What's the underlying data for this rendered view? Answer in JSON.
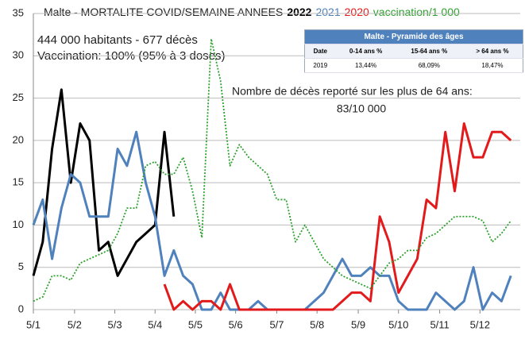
{
  "chart_data": {
    "type": "line",
    "title": "Malte - MORTALITE COVID/SEMAINE ANNEES",
    "annotations": [
      "444 000 habitants - 677 décès",
      "Vaccination: 100% (95% à 3 doses)",
      "Nombre de décès reporté sur les plus de 64 ans:",
      "83/10 000"
    ],
    "x": [
      1,
      2,
      3,
      4,
      5,
      6,
      7,
      8,
      9,
      10,
      11,
      12,
      13,
      14,
      15,
      16,
      17,
      18,
      19,
      20,
      21,
      22,
      23,
      24,
      25,
      26,
      27,
      28,
      29,
      30,
      31,
      32,
      33,
      34,
      35,
      36,
      37,
      38,
      39,
      40,
      41,
      42,
      43,
      44,
      45,
      46,
      47,
      48,
      49,
      50,
      51,
      52
    ],
    "xlim": [
      1,
      53
    ],
    "xticks": [
      {
        "value": 1,
        "label": "5/1"
      },
      {
        "value": 5.4,
        "label": "5/2"
      },
      {
        "value": 9.7,
        "label": "5/3"
      },
      {
        "value": 14,
        "label": "5/4"
      },
      {
        "value": 18.3,
        "label": "5/5"
      },
      {
        "value": 22.6,
        "label": "5/6"
      },
      {
        "value": 27,
        "label": "5/7"
      },
      {
        "value": 31.3,
        "label": "5/8"
      },
      {
        "value": 35.7,
        "label": "5/9"
      },
      {
        "value": 40,
        "label": "5/10"
      },
      {
        "value": 44.4,
        "label": "5/11"
      },
      {
        "value": 48.7,
        "label": "5/12"
      }
    ],
    "ylim": [
      0,
      35
    ],
    "yticks": [
      0,
      5,
      10,
      15,
      20,
      25,
      30,
      35
    ],
    "grid": true,
    "series": [
      {
        "name": "2022",
        "color": "#000000",
        "style": "solid",
        "values": [
          4,
          8,
          19,
          26,
          15,
          22,
          20,
          7,
          8,
          4,
          6,
          8,
          9,
          10,
          21,
          11,
          null,
          null,
          null,
          null,
          null,
          null,
          null,
          null,
          null,
          null,
          null,
          null,
          null,
          null,
          null,
          null,
          null,
          null,
          null,
          null,
          null,
          null,
          null,
          null,
          null,
          null,
          null,
          null,
          null,
          null,
          null,
          null,
          null,
          null,
          null,
          null
        ]
      },
      {
        "name": "2021",
        "color": "#4f81bd",
        "style": "solid",
        "values": [
          10,
          13,
          6,
          12,
          16,
          15,
          11,
          11,
          11,
          19,
          17,
          21,
          15,
          11,
          4,
          7,
          4,
          3,
          0,
          0,
          2,
          0,
          0,
          0,
          1,
          0,
          0,
          0,
          0,
          0,
          1,
          2,
          4,
          6,
          4,
          4,
          5,
          4,
          4,
          1,
          0,
          0,
          0,
          2,
          1,
          0,
          1,
          5,
          0,
          2,
          1,
          4
        ]
      },
      {
        "name": "2020",
        "color": "#e31a1c",
        "style": "solid",
        "values": [
          null,
          null,
          null,
          null,
          null,
          null,
          null,
          null,
          null,
          null,
          null,
          null,
          null,
          null,
          3,
          0,
          1,
          0,
          1,
          1,
          0,
          3,
          0,
          0,
          0,
          0,
          0,
          0,
          0,
          0,
          0,
          0,
          0,
          1,
          2,
          2,
          1,
          11,
          8,
          2,
          4,
          6,
          13,
          12,
          21,
          14,
          22,
          18,
          18,
          21,
          21,
          20
        ]
      },
      {
        "name": "vaccination/1 000",
        "color": "#2ca02c",
        "style": "dotted",
        "values": [
          1,
          1.5,
          4,
          4,
          3.5,
          5.5,
          6,
          6.5,
          7,
          9,
          12,
          12,
          17,
          17.5,
          16,
          16,
          18,
          14,
          8.5,
          32,
          27,
          17,
          19.5,
          18,
          17,
          16,
          13,
          13,
          8,
          10,
          8,
          6,
          5,
          4,
          3.5,
          3,
          2.5,
          4,
          5.5,
          6,
          7,
          7,
          8.5,
          9,
          10,
          11,
          11,
          11,
          10.5,
          8,
          9,
          10.5
        ]
      }
    ],
    "inset_table": {
      "title": "Malte - Pyramide des âges",
      "columns": [
        "Date",
        "0-14 ans %",
        "15-64 ans %",
        "> 64 ans %"
      ],
      "rows": [
        [
          "2019",
          "13,44%",
          "68,09%",
          "18,47%"
        ]
      ]
    }
  }
}
